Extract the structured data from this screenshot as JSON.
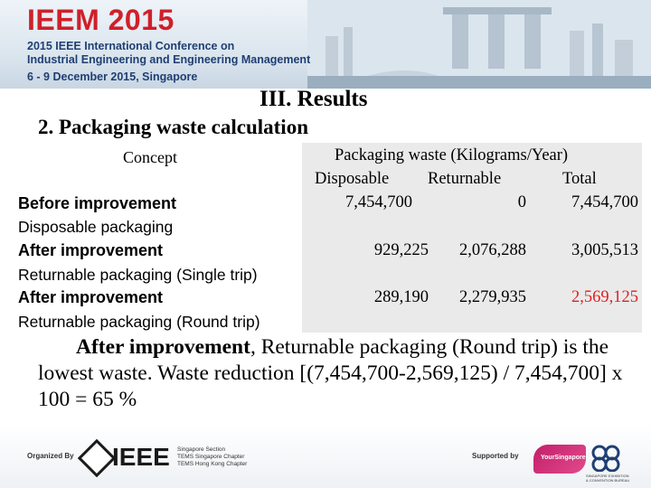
{
  "banner": {
    "title": "IEEM 2015",
    "line1": "2015 IEEE International Conference on",
    "line2": "Industrial Engineering and Engineering Management",
    "line3": "6 - 9 December 2015, Singapore"
  },
  "section_title": "III. Results",
  "sub_title": "2. Packaging waste calculation",
  "table": {
    "concept_header": "Concept",
    "group_header": "Packaging waste (Kilograms/Year)",
    "columns": [
      "Disposable",
      "Returnable",
      "Total"
    ],
    "rows": [
      {
        "label_bold": "Before improvement",
        "label_detail": "Disposable packaging",
        "values": [
          "7,454,700",
          "0",
          "7,454,700"
        ]
      },
      {
        "label_bold": "After improvement",
        "label_detail": "Returnable packaging (Single trip)",
        "values": [
          "929,225",
          "2,076,288",
          "3,005,513"
        ]
      },
      {
        "label_bold": "After improvement",
        "label_detail": "Returnable packaging (Round trip)",
        "values": [
          "289,190",
          "2,279,935",
          "2,569,125"
        ]
      }
    ],
    "highlight_color": "#e02020"
  },
  "conclusion": {
    "bold_part": "After improvement",
    "rest": ", Returnable packaging (Round trip) is the lowest waste. Waste reduction [(7,454,700-2,569,125) / 7,454,700] x 100 = 65 %"
  },
  "footer": {
    "organized_by": "Organized By",
    "ieee_logo": "IEEE",
    "ieee_lines": [
      "Singapore Section",
      "TEMS Singapore Chapter",
      "TEMS Hong Kong Chapter"
    ],
    "supported_by": "Supported by",
    "supporter_logo_text": "YourSingapore",
    "supporter2_lines": "SINGAPORE EXHIBITION & CONVENTION BUREAU"
  },
  "colors": {
    "title_red": "#d0202a",
    "banner_blue": "#1f3f73"
  }
}
